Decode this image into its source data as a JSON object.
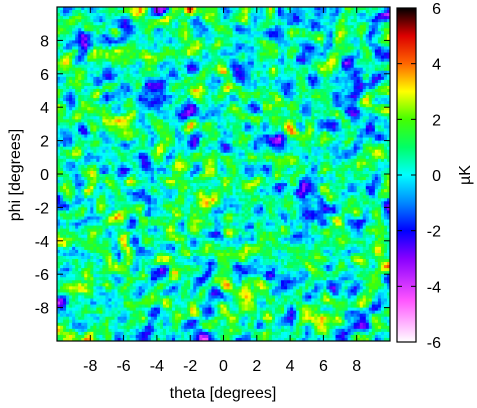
{
  "chart_data": {
    "type": "heatmap",
    "xlabel": "theta [degrees]",
    "ylabel": "phi [degrees]",
    "colorbar_label": "µK",
    "xlim": [
      -10,
      10
    ],
    "ylim": [
      -10,
      10
    ],
    "clim": [
      -6,
      6
    ],
    "x_ticks": [
      {
        "value": -8,
        "label": "-8"
      },
      {
        "value": -6,
        "label": "-6"
      },
      {
        "value": -4,
        "label": "-4"
      },
      {
        "value": -2,
        "label": "-2"
      },
      {
        "value": 0,
        "label": "0"
      },
      {
        "value": 2,
        "label": "2"
      },
      {
        "value": 4,
        "label": "4"
      },
      {
        "value": 6,
        "label": "6"
      },
      {
        "value": 8,
        "label": "8"
      }
    ],
    "y_ticks": [
      {
        "value": -8,
        "label": "-8"
      },
      {
        "value": -6,
        "label": "-6"
      },
      {
        "value": -4,
        "label": "-4"
      },
      {
        "value": -2,
        "label": "-2"
      },
      {
        "value": 0,
        "label": "0"
      },
      {
        "value": 2,
        "label": "2"
      },
      {
        "value": 4,
        "label": "4"
      },
      {
        "value": 6,
        "label": "6"
      },
      {
        "value": 8,
        "label": "8"
      }
    ],
    "colorbar_ticks": [
      {
        "value": 6,
        "label": "6"
      },
      {
        "value": 4,
        "label": "4"
      },
      {
        "value": 2,
        "label": "2"
      },
      {
        "value": 0,
        "label": "0"
      },
      {
        "value": -2,
        "label": "-2"
      },
      {
        "value": -4,
        "label": "-4"
      },
      {
        "value": -6,
        "label": "-6"
      }
    ],
    "colormap": [
      {
        "value": -6,
        "color": "#ffffff"
      },
      {
        "value": -4.5,
        "color": "#ff55ff"
      },
      {
        "value": -3,
        "color": "#8800ff"
      },
      {
        "value": -2,
        "color": "#0000ff"
      },
      {
        "value": -1,
        "color": "#0088ff"
      },
      {
        "value": 0,
        "color": "#00ffff"
      },
      {
        "value": 1,
        "color": "#00ff66"
      },
      {
        "value": 2,
        "color": "#44ff00"
      },
      {
        "value": 3,
        "color": "#ffff00"
      },
      {
        "value": 4,
        "color": "#ff6600"
      },
      {
        "value": 5,
        "color": "#dd0000"
      },
      {
        "value": 6,
        "color": "#000000"
      }
    ],
    "grid": false,
    "legend": "colorbar-right"
  }
}
